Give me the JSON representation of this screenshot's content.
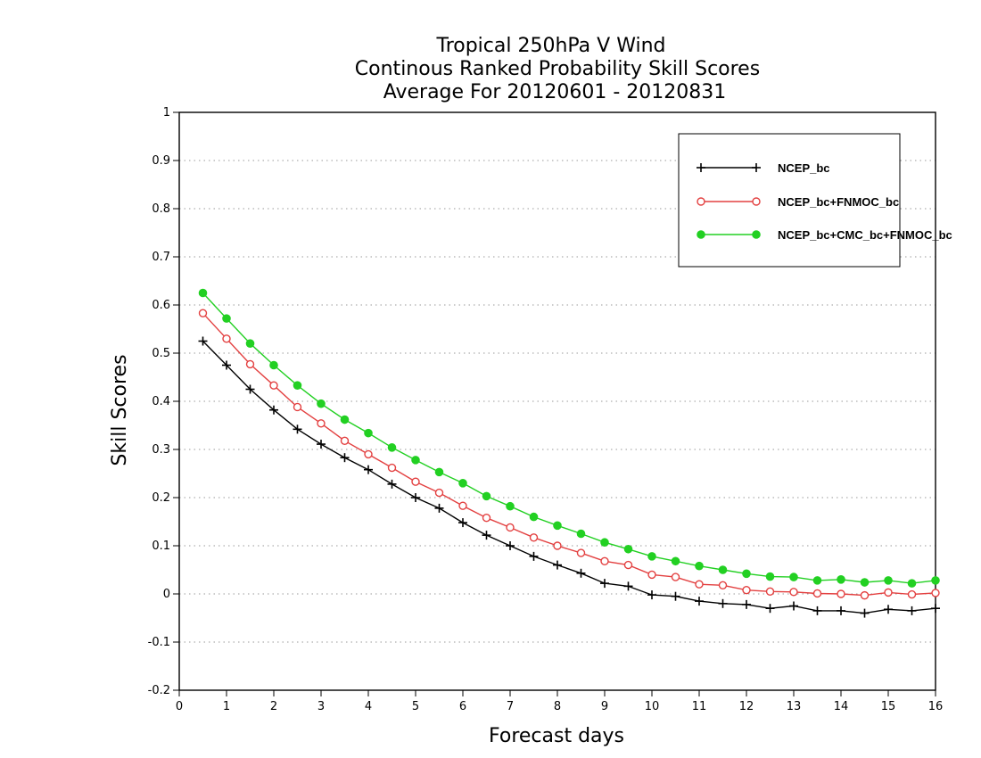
{
  "chart_data": {
    "type": "line",
    "title_lines": [
      "Tropical 250hPa V Wind",
      "Continous Ranked Probability Skill Scores",
      "Average For 20120601 - 20120831"
    ],
    "xlabel": "Forecast days",
    "ylabel": "Skill Scores",
    "xlim": [
      0,
      16
    ],
    "ylim": [
      -0.2,
      1
    ],
    "xticks": [
      0,
      1,
      2,
      3,
      4,
      5,
      6,
      7,
      8,
      9,
      10,
      11,
      12,
      13,
      14,
      15,
      16
    ],
    "yticks": [
      -0.2,
      -0.1,
      0,
      0.1,
      0.2,
      0.3,
      0.4,
      0.5,
      0.6,
      0.7,
      0.8,
      0.9,
      1
    ],
    "ytick_labels": [
      "-0.2",
      "-0.1",
      "0",
      "0.1",
      "0.2",
      "0.3",
      "0.4",
      "0.5",
      "0.6",
      "0.7",
      "0.8",
      "0.9",
      "1"
    ],
    "grid": "horizontal-dotted",
    "legend_position": "top-right",
    "x": [
      0.5,
      1,
      1.5,
      2,
      2.5,
      3,
      3.5,
      4,
      4.5,
      5,
      5.5,
      6,
      6.5,
      7,
      7.5,
      8,
      8.5,
      9,
      9.5,
      10,
      10.5,
      11,
      11.5,
      12,
      12.5,
      13,
      13.5,
      14,
      14.5,
      15,
      15.5,
      16
    ],
    "series": [
      {
        "name": "NCEP_bc",
        "color": "#000000",
        "marker": "plus",
        "values": [
          0.525,
          0.475,
          0.425,
          0.382,
          0.342,
          0.311,
          0.283,
          0.258,
          0.228,
          0.2,
          0.178,
          0.148,
          0.122,
          0.1,
          0.078,
          0.06,
          0.043,
          0.022,
          0.016,
          -0.002,
          -0.005,
          -0.015,
          -0.02,
          -0.022,
          -0.03,
          -0.025,
          -0.035,
          -0.035,
          -0.04,
          -0.032,
          -0.035,
          -0.03
        ]
      },
      {
        "name": "NCEP_bc+FNMOC_bc",
        "color": "#e34040",
        "marker": "circle-open",
        "values": [
          0.583,
          0.53,
          0.477,
          0.433,
          0.388,
          0.354,
          0.318,
          0.29,
          0.262,
          0.233,
          0.21,
          0.183,
          0.158,
          0.138,
          0.117,
          0.1,
          0.085,
          0.068,
          0.06,
          0.04,
          0.035,
          0.02,
          0.018,
          0.008,
          0.005,
          0.004,
          0.001,
          0.0,
          -0.003,
          0.003,
          -0.001,
          0.002
        ]
      },
      {
        "name": "NCEP_bc+CMC_bc+FNMOC_bc",
        "color": "#22d022",
        "marker": "circle-filled",
        "values": [
          0.625,
          0.572,
          0.52,
          0.475,
          0.433,
          0.395,
          0.362,
          0.334,
          0.304,
          0.278,
          0.253,
          0.23,
          0.203,
          0.182,
          0.16,
          0.142,
          0.125,
          0.107,
          0.093,
          0.078,
          0.068,
          0.058,
          0.05,
          0.042,
          0.036,
          0.035,
          0.028,
          0.03,
          0.024,
          0.028,
          0.022,
          0.028
        ]
      }
    ]
  }
}
